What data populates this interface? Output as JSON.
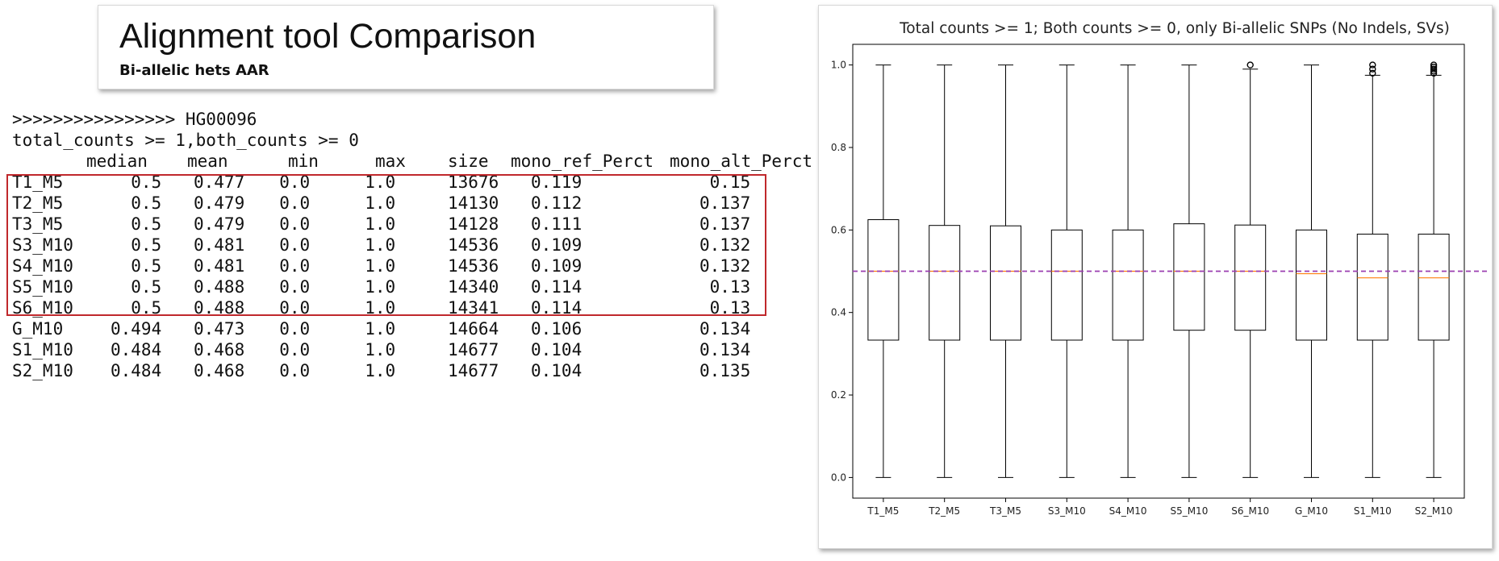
{
  "header": {
    "title": "Alignment tool Comparison",
    "subtitle": "Bi-allelic hets AAR"
  },
  "console": {
    "sample_line": ">>>>>>>>>>>>>>>> HG00096",
    "filter_line": "total_counts >= 1,both_counts >= 0",
    "columns": [
      "median",
      "mean",
      "min",
      "max",
      "size",
      "mono_ref_Perct",
      "mono_alt_Perct"
    ],
    "rows": [
      {
        "name": "T1_M5",
        "cells": [
          "0.5",
          "0.477",
          "0.0",
          "1.0",
          "13676",
          "0.119",
          "0.15"
        ]
      },
      {
        "name": "T2_M5",
        "cells": [
          "0.5",
          "0.479",
          "0.0",
          "1.0",
          "14130",
          "0.112",
          "0.137"
        ]
      },
      {
        "name": "T3_M5",
        "cells": [
          "0.5",
          "0.479",
          "0.0",
          "1.0",
          "14128",
          "0.111",
          "0.137"
        ]
      },
      {
        "name": "S3_M10",
        "cells": [
          "0.5",
          "0.481",
          "0.0",
          "1.0",
          "14536",
          "0.109",
          "0.132"
        ]
      },
      {
        "name": "S4_M10",
        "cells": [
          "0.5",
          "0.481",
          "0.0",
          "1.0",
          "14536",
          "0.109",
          "0.132"
        ]
      },
      {
        "name": "S5_M10",
        "cells": [
          "0.5",
          "0.488",
          "0.0",
          "1.0",
          "14340",
          "0.114",
          "0.13"
        ]
      },
      {
        "name": "S6_M10",
        "cells": [
          "0.5",
          "0.488",
          "0.0",
          "1.0",
          "14341",
          "0.114",
          "0.13"
        ]
      },
      {
        "name": "G_M10",
        "cells": [
          "0.494",
          "0.473",
          "0.0",
          "1.0",
          "14664",
          "0.106",
          "0.134"
        ]
      },
      {
        "name": "S1_M10",
        "cells": [
          "0.484",
          "0.468",
          "0.0",
          "1.0",
          "14677",
          "0.104",
          "0.134"
        ]
      },
      {
        "name": "S2_M10",
        "cells": [
          "0.484",
          "0.468",
          "0.0",
          "1.0",
          "14677",
          "0.104",
          "0.135"
        ]
      }
    ]
  },
  "chart_data": {
    "type": "box",
    "title": "Total counts >= 1; Both counts >= 0, only Bi-allelic SNPs (No Indels, SVs)",
    "xlabel": "",
    "ylabel": "",
    "ylim": [
      -0.05,
      1.05
    ],
    "yticks": [
      "0.0",
      "0.2",
      "0.4",
      "0.6",
      "0.8",
      "1.0"
    ],
    "reference_line": 0.5,
    "colors": {
      "box": "#000000",
      "median": "#ff7f0e",
      "reference": "#9b3fb0",
      "outlier": "#000000"
    },
    "categories": [
      "T1_M5",
      "T2_M5",
      "T3_M5",
      "S3_M10",
      "S4_M10",
      "S5_M10",
      "S6_M10",
      "G_M10",
      "S1_M10",
      "S2_M10"
    ],
    "boxes": [
      {
        "whislo": 0.0,
        "q1": 0.333,
        "med": 0.5,
        "q3": 0.625,
        "whishi": 1.0,
        "fliers": []
      },
      {
        "whislo": 0.0,
        "q1": 0.333,
        "med": 0.5,
        "q3": 0.611,
        "whishi": 1.0,
        "fliers": []
      },
      {
        "whislo": 0.0,
        "q1": 0.333,
        "med": 0.5,
        "q3": 0.61,
        "whishi": 1.0,
        "fliers": []
      },
      {
        "whislo": 0.0,
        "q1": 0.333,
        "med": 0.5,
        "q3": 0.6,
        "whishi": 1.0,
        "fliers": []
      },
      {
        "whislo": 0.0,
        "q1": 0.333,
        "med": 0.5,
        "q3": 0.6,
        "whishi": 1.0,
        "fliers": []
      },
      {
        "whislo": 0.0,
        "q1": 0.357,
        "med": 0.5,
        "q3": 0.615,
        "whishi": 1.0,
        "fliers": []
      },
      {
        "whislo": 0.0,
        "q1": 0.357,
        "med": 0.5,
        "q3": 0.612,
        "whishi": 0.99,
        "fliers": [
          1.0
        ]
      },
      {
        "whislo": 0.0,
        "q1": 0.333,
        "med": 0.494,
        "q3": 0.6,
        "whishi": 1.0,
        "fliers": []
      },
      {
        "whislo": 0.0,
        "q1": 0.333,
        "med": 0.484,
        "q3": 0.59,
        "whishi": 0.975,
        "fliers": [
          0.98,
          0.99,
          1.0
        ]
      },
      {
        "whislo": 0.0,
        "q1": 0.333,
        "med": 0.484,
        "q3": 0.59,
        "whishi": 0.975,
        "fliers": [
          0.98,
          0.985,
          0.99,
          0.995,
          1.0
        ]
      }
    ]
  }
}
